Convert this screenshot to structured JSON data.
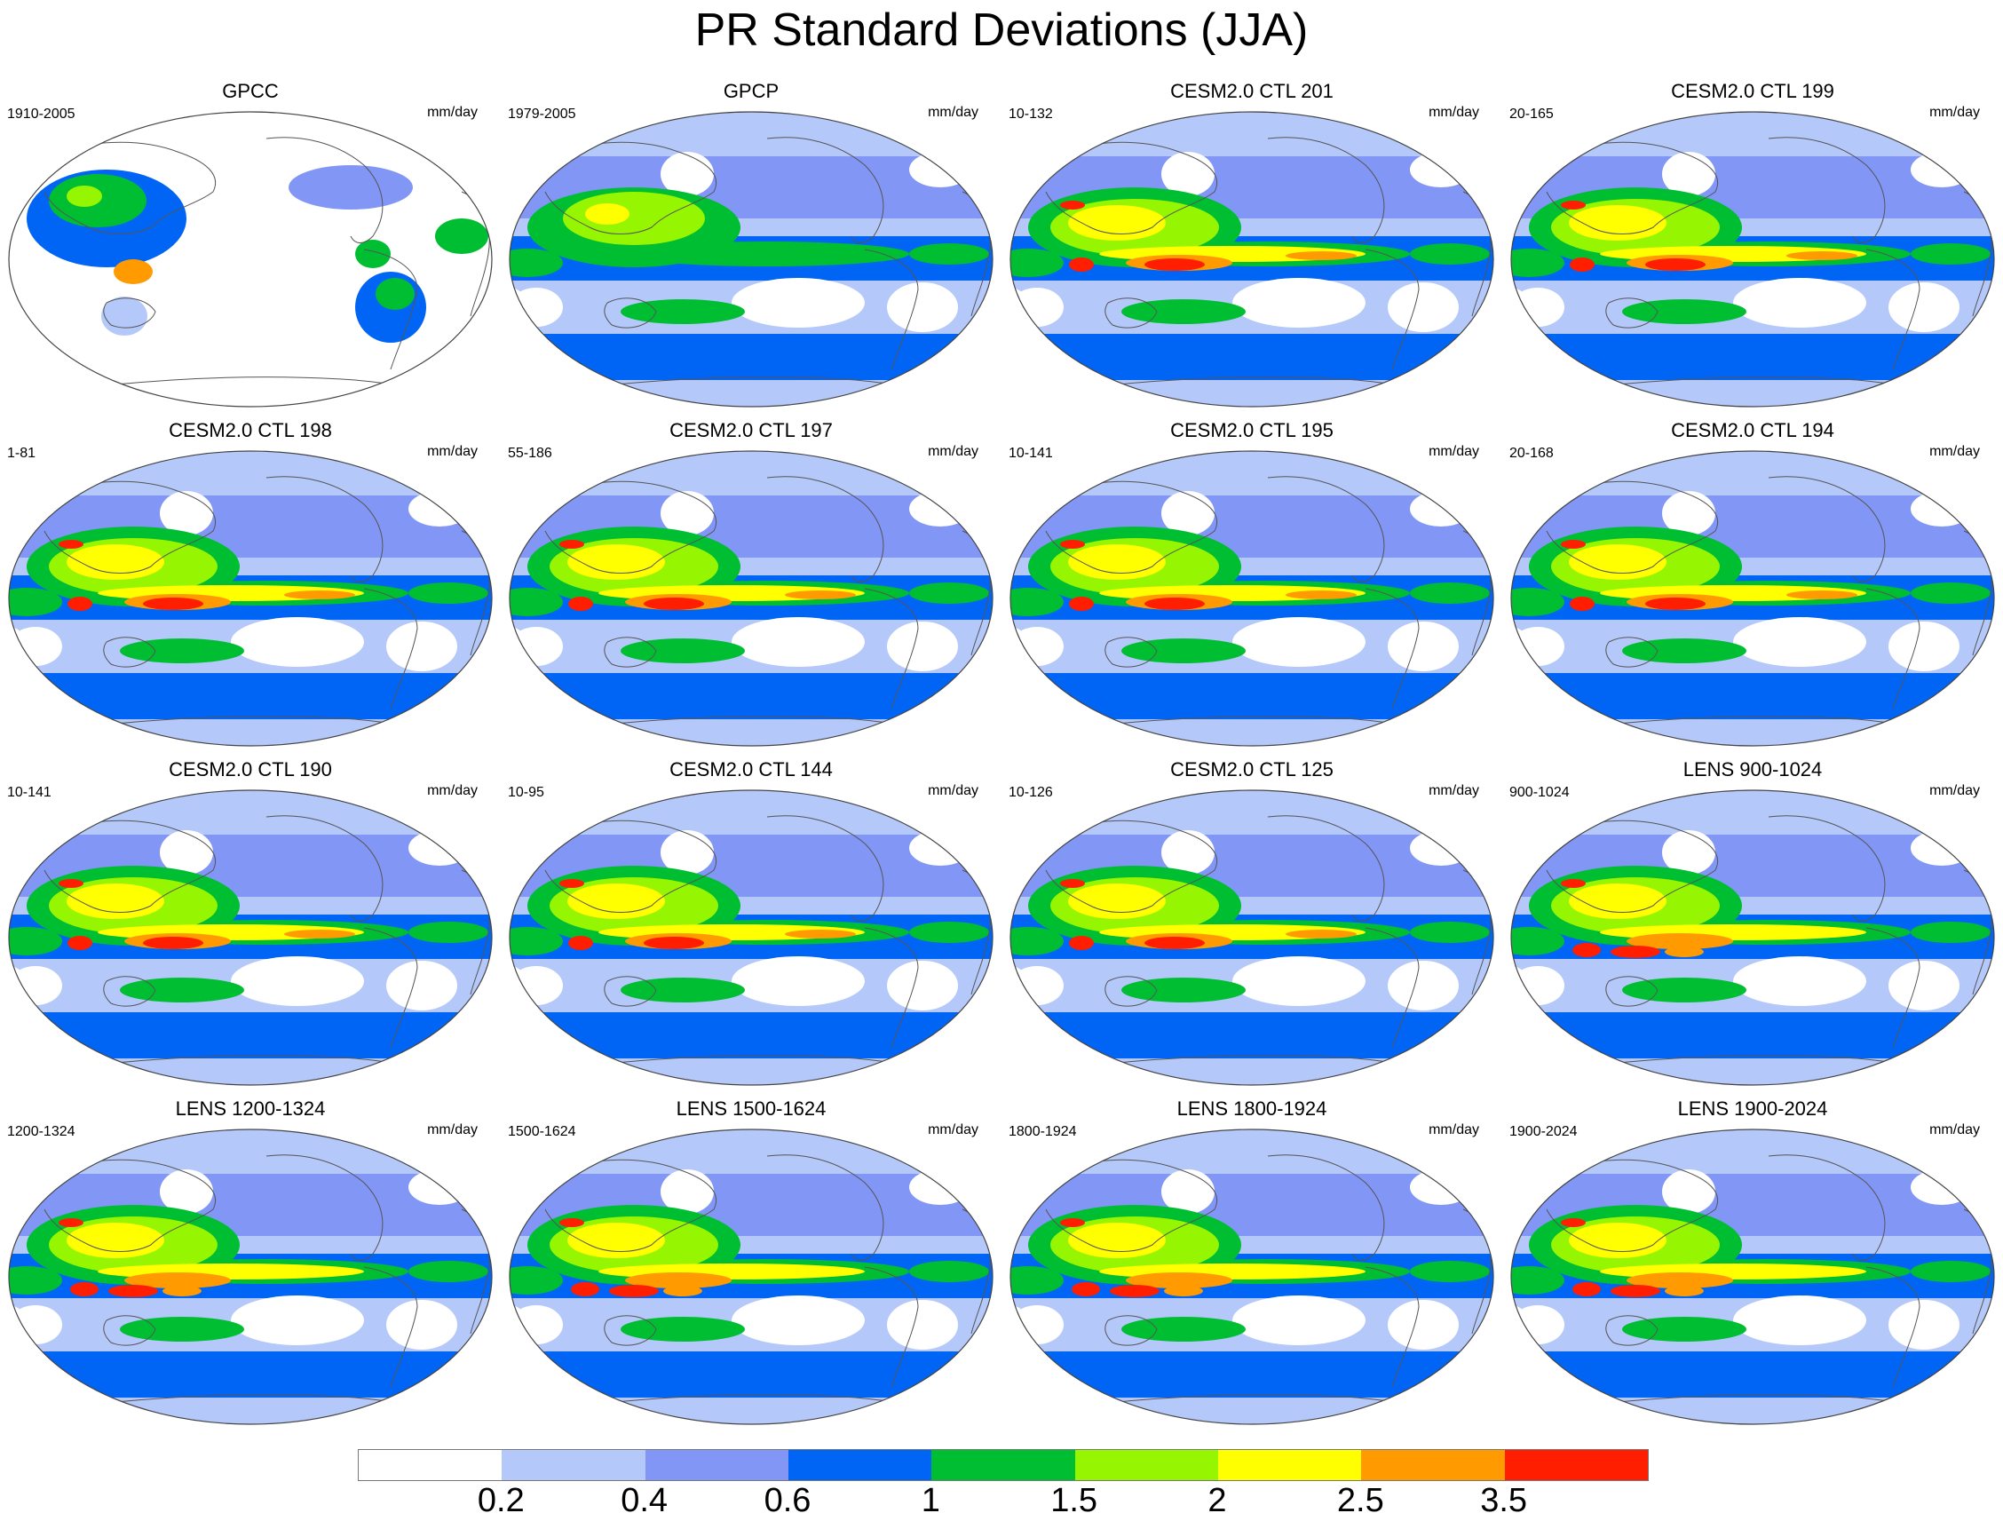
{
  "title": "PR Standard Deviations (JJA)",
  "colorbar": {
    "colors": [
      "#ffffff",
      "#b4c8fa",
      "#8296f5",
      "#0064f5",
      "#00be32",
      "#96f500",
      "#ffff00",
      "#ff9b00",
      "#ff1e00"
    ],
    "tick_labels": [
      "0.2",
      "0.4",
      "0.6",
      "1",
      "1.5",
      "2",
      "2.5",
      "3.5"
    ]
  },
  "panels": [
    {
      "title": "GPCC",
      "period": "1910-2005",
      "units": "mm/day",
      "pattern": "gpcc"
    },
    {
      "title": "GPCP",
      "period": "1979-2005",
      "units": "mm/day",
      "pattern": "obs"
    },
    {
      "title": "CESM2.0 CTL 201",
      "period": "10-132",
      "units": "mm/day",
      "pattern": "model"
    },
    {
      "title": "CESM2.0 CTL 199",
      "period": "20-165",
      "units": "mm/day",
      "pattern": "model"
    },
    {
      "title": "CESM2.0 CTL 198",
      "period": "1-81",
      "units": "mm/day",
      "pattern": "model"
    },
    {
      "title": "CESM2.0 CTL 197",
      "period": "55-186",
      "units": "mm/day",
      "pattern": "model"
    },
    {
      "title": "CESM2.0 CTL 195",
      "period": "10-141",
      "units": "mm/day",
      "pattern": "model"
    },
    {
      "title": "CESM2.0 CTL 194",
      "period": "20-168",
      "units": "mm/day",
      "pattern": "model"
    },
    {
      "title": "CESM2.0 CTL 190",
      "period": "10-141",
      "units": "mm/day",
      "pattern": "model"
    },
    {
      "title": "CESM2.0 CTL 144",
      "period": "10-95",
      "units": "mm/day",
      "pattern": "model"
    },
    {
      "title": "CESM2.0 CTL 125",
      "period": "10-126",
      "units": "mm/day",
      "pattern": "model"
    },
    {
      "title": "LENS 900-1024",
      "period": "900-1024",
      "units": "mm/day",
      "pattern": "lens"
    },
    {
      "title": "LENS 1200-1324",
      "period": "1200-1324",
      "units": "mm/day",
      "pattern": "lens"
    },
    {
      "title": "LENS 1500-1624",
      "period": "1500-1624",
      "units": "mm/day",
      "pattern": "lens"
    },
    {
      "title": "LENS 1800-1924",
      "period": "1800-1924",
      "units": "mm/day",
      "pattern": "lens"
    },
    {
      "title": "LENS 1900-2024",
      "period": "1900-2024",
      "units": "mm/day",
      "pattern": "lens"
    }
  ]
}
